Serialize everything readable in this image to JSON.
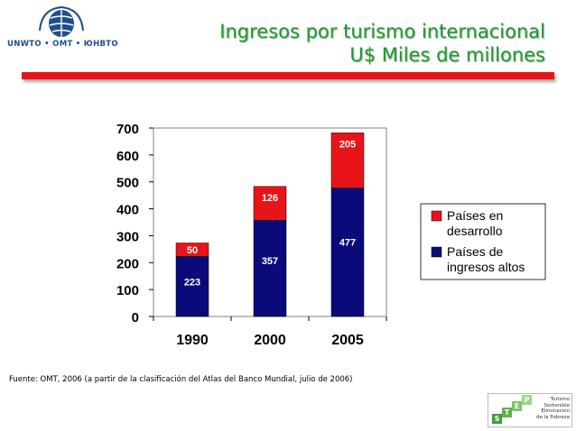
{
  "header": {
    "logo_text": "UNWTO • OMT • ЮНВТО",
    "title_line1": "Ingresos por turismo internacional",
    "title_line2": "U$ Miles de millones"
  },
  "source": "Fuente: OMT, 2006 (a partir de la clasificación del Atlas del Banco Mundial, julio de 2006)",
  "step_logo": {
    "letters": [
      "S",
      "T",
      "E",
      "P"
    ],
    "text_lines": [
      "Turismo",
      "Sostenible",
      "Eliminación",
      "de la Pobreza"
    ]
  },
  "colors": {
    "developing": "#e8141a",
    "high_income": "#0a0a7a",
    "title": "#1f9a2f"
  },
  "chart_data": {
    "type": "bar",
    "stacked": true,
    "title": "",
    "xlabel": "",
    "ylabel": "",
    "categories": [
      "1990",
      "2000",
      "2005"
    ],
    "series": [
      {
        "name": "Países de ingresos altos",
        "values": [
          223,
          357,
          477
        ]
      },
      {
        "name": "Países en desarrollo",
        "values": [
          50,
          126,
          205
        ]
      }
    ],
    "ylim": [
      0,
      700
    ],
    "yticks": [
      0,
      100,
      200,
      300,
      400,
      500,
      600,
      700
    ],
    "legend": [
      "Países en desarrollo",
      "Países de ingresos altos"
    ],
    "legend_position": "right",
    "grid": false
  }
}
